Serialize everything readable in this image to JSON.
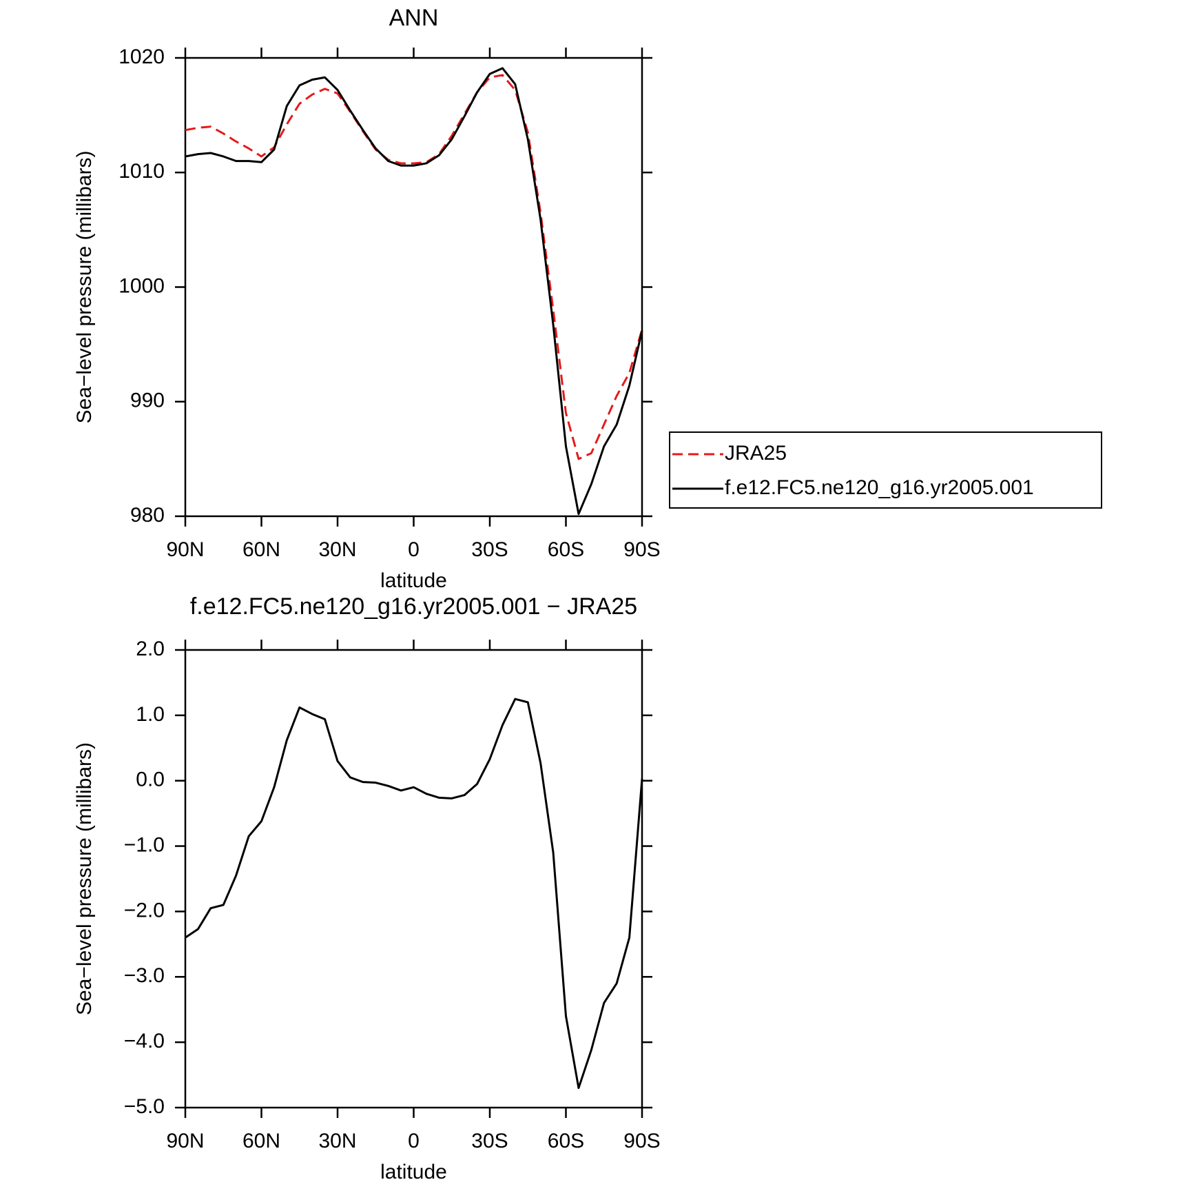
{
  "chart_data": [
    {
      "type": "line",
      "title": "ANN",
      "xlabel": "latitude",
      "ylabel": "Sea−level pressure (millibars)",
      "x": [
        90,
        85,
        80,
        75,
        70,
        65,
        60,
        55,
        50,
        45,
        40,
        35,
        30,
        25,
        20,
        15,
        10,
        5,
        0,
        -5,
        -10,
        -15,
        -20,
        -25,
        -30,
        -35,
        -40,
        -45,
        -50,
        -55,
        -60,
        -65,
        -70,
        -75,
        -80,
        -85,
        -90
      ],
      "xlim": [
        90,
        -90
      ],
      "xticks": [
        {
          "value": 90,
          "label": "90N"
        },
        {
          "value": 60,
          "label": "60N"
        },
        {
          "value": 30,
          "label": "30N"
        },
        0,
        {
          "value": -30,
          "label": "30S"
        },
        {
          "value": -60,
          "label": "60S"
        },
        {
          "value": -90,
          "label": "90S"
        }
      ],
      "ylim": [
        980,
        1020
      ],
      "yticks": [
        980,
        990,
        1000,
        1010,
        1020
      ],
      "legend": "right",
      "series": [
        {
          "name": "JRA25",
          "color": "#e41a1c",
          "line_style": "dashed",
          "values": [
            1013.7,
            1013.9,
            1014.0,
            1013.4,
            1012.7,
            1012.1,
            1011.4,
            1012.2,
            1014.2,
            1016.0,
            1016.8,
            1017.3,
            1016.9,
            1015.3,
            1013.6,
            1012.0,
            1011.1,
            1010.8,
            1010.8,
            1010.9,
            1011.6,
            1013.2,
            1015.1,
            1017.0,
            1018.3,
            1018.5,
            1017.2,
            1013.5,
            1006.5,
            998.0,
            989.0,
            985.0,
            985.5,
            988.0,
            990.5,
            992.5,
            996.3
          ]
        },
        {
          "name": "f.e12.FC5.ne120_g16.yr2005.001",
          "color": "#000000",
          "line_style": "solid",
          "values": [
            1011.4,
            1011.6,
            1011.7,
            1011.4,
            1011.0,
            1011.0,
            1010.9,
            1012.0,
            1015.8,
            1017.6,
            1018.1,
            1018.3,
            1017.2,
            1015.4,
            1013.7,
            1012.1,
            1011.0,
            1010.6,
            1010.6,
            1010.8,
            1011.5,
            1012.9,
            1014.9,
            1017.0,
            1018.6,
            1019.1,
            1017.7,
            1012.9,
            1005.9,
            996.7,
            986.1,
            980.2,
            982.8,
            986.1,
            988.0,
            991.4,
            996.2
          ]
        }
      ]
    },
    {
      "type": "line",
      "title": "f.e12.FC5.ne120_g16.yr2005.001 − JRA25",
      "xlabel": "latitude",
      "ylabel": "Sea−level pressure (millibars)",
      "x": [
        90,
        85,
        80,
        75,
        70,
        65,
        60,
        55,
        50,
        45,
        40,
        35,
        30,
        25,
        20,
        15,
        10,
        5,
        0,
        -5,
        -10,
        -15,
        -20,
        -25,
        -30,
        -35,
        -40,
        -45,
        -50,
        -55,
        -60,
        -65,
        -70,
        -75,
        -80,
        -85,
        -90
      ],
      "xlim": [
        90,
        -90
      ],
      "xticks": [
        {
          "value": 90,
          "label": "90N"
        },
        {
          "value": 60,
          "label": "60N"
        },
        {
          "value": 30,
          "label": "30N"
        },
        0,
        {
          "value": -30,
          "label": "30S"
        },
        {
          "value": -60,
          "label": "60S"
        },
        {
          "value": -90,
          "label": "90S"
        }
      ],
      "ylim": [
        -5,
        2
      ],
      "yticks": [
        {
          "value": -5,
          "label": "−5.0"
        },
        {
          "value": -4,
          "label": "−4.0"
        },
        {
          "value": -3,
          "label": "−3.0"
        },
        {
          "value": -2,
          "label": "−2.0"
        },
        {
          "value": -1,
          "label": "−1.0"
        },
        {
          "value": 0,
          "label": "0.0"
        },
        {
          "value": 1,
          "label": "1.0"
        },
        {
          "value": 2,
          "label": "2.0"
        }
      ],
      "series": [
        {
          "color": "#000000",
          "line_style": "solid",
          "values": [
            -2.4,
            -2.27,
            -1.95,
            -1.9,
            -1.45,
            -0.85,
            -0.62,
            -0.1,
            0.62,
            1.12,
            1.02,
            0.94,
            0.3,
            0.05,
            -0.02,
            -0.03,
            -0.08,
            -0.15,
            -0.1,
            -0.2,
            -0.26,
            -0.27,
            -0.22,
            -0.05,
            0.33,
            0.85,
            1.25,
            1.2,
            0.27,
            -1.1,
            -3.6,
            -4.7,
            -4.12,
            -3.4,
            -3.1,
            -2.4,
            0.03
          ]
        }
      ]
    }
  ]
}
